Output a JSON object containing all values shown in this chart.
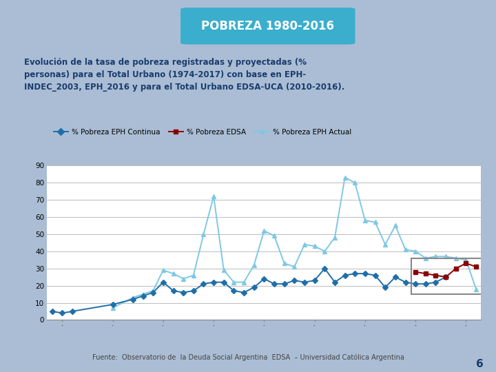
{
  "title": "POBREZA 1980-2016",
  "subtitle": "Evolución de la tasa de pobreza registradas y proyectadas (%\npersonas) para el Total Urbano (1974-2017) con base en EPH-\nINDEC_2003, EPH_2016 y para el Total Urbano EDSA-UCA (2010-2016).",
  "footer": "Fuente:  Observatorio de  la Deuda Social Argentina  EDSA  – Universidad Católica Argentina",
  "title_bg": "#3aaecc",
  "outer_bg": "#aabdd4",
  "inner_bg": "#FFFFFF",
  "title_color": "#FFFFFF",
  "subtitle_color": "#1a3c6e",
  "footer_color": "#444444",
  "eph_continua_years": [
    1974,
    1975,
    1976,
    1980,
    1982,
    1983,
    1984,
    1985,
    1986,
    1987,
    1988,
    1989,
    1990,
    1991,
    1992,
    1993,
    1994,
    1995,
    1996,
    1997,
    1998,
    1999,
    2000,
    2001,
    2002,
    2003,
    2004,
    2005,
    2006,
    2007,
    2008,
    2009,
    2010,
    2011,
    2012,
    2013
  ],
  "eph_continua_values": [
    5,
    4,
    5,
    9,
    12,
    14,
    16,
    22,
    17,
    16,
    17,
    21,
    22,
    22,
    17,
    16,
    19,
    24,
    21,
    21,
    23,
    22,
    23,
    30,
    22,
    26,
    27,
    27,
    26,
    19,
    25,
    22,
    21,
    21,
    22,
    25
  ],
  "eph_actual_years": [
    1980,
    1982,
    1983,
    1984,
    1985,
    1986,
    1987,
    1988,
    1989,
    1990,
    1991,
    1992,
    1993,
    1994,
    1995,
    1996,
    1997,
    1998,
    1999,
    2000,
    2001,
    2002,
    2003,
    2004,
    2005,
    2006,
    2007,
    2008,
    2009,
    2010,
    2011,
    2012,
    2013,
    2014,
    2015,
    2016
  ],
  "eph_actual_values": [
    7,
    13,
    15,
    17,
    29,
    27,
    24,
    26,
    50,
    72,
    29,
    22,
    22,
    32,
    52,
    49,
    33,
    31,
    44,
    43,
    40,
    48,
    83,
    80,
    58,
    57,
    44,
    55,
    41,
    40,
    36,
    37,
    37,
    36,
    35,
    18
  ],
  "edsa_years": [
    2010,
    2011,
    2012,
    2013,
    2014,
    2015,
    2016
  ],
  "edsa_values": [
    28,
    27,
    26,
    25,
    30,
    33,
    31
  ],
  "eph_continua_color": "#1F6EA8",
  "eph_actual_color": "#7EC8E3",
  "edsa_color": "#8B0000",
  "legend_labels": [
    "% Pobreza EPH Continua",
    "% Pobreza EDSA",
    "% Pobreza EPH Actual"
  ],
  "ylim": [
    0,
    90
  ],
  "yticks": [
    0,
    10,
    20,
    30,
    40,
    50,
    60,
    70,
    80,
    90
  ],
  "xlim": [
    1973.5,
    2016.5
  ]
}
